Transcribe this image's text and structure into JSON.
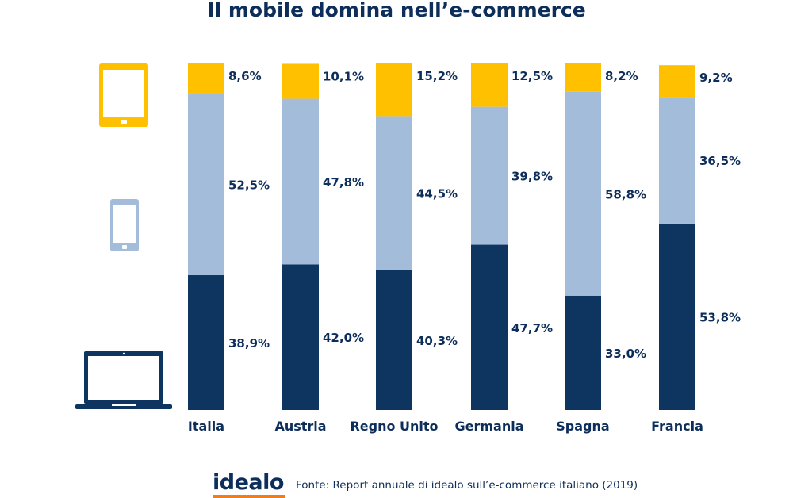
{
  "title": "Il mobile domina nell’e-commerce",
  "footer": {
    "logo": "idealo",
    "source": "Fonte: Report annuale di idealo sull’e-commerce italiano (2019)"
  },
  "icons": [
    "tablet-icon",
    "smartphone-icon",
    "laptop-icon"
  ],
  "colors": {
    "tablet": "#ffc000",
    "smartphone": "#a3bcd9",
    "desktop": "#0d3560",
    "text": "#0d2d5a",
    "logo_bar": "#f07d1a"
  },
  "chart_data": {
    "type": "bar",
    "stacked": true,
    "categories": [
      "Italia",
      "Austria",
      "Regno Unito",
      "Germania",
      "Spagna",
      "Francia"
    ],
    "series": [
      {
        "key": "desktop",
        "values": [
          38.9,
          42.0,
          40.3,
          47.7,
          33.0,
          53.8
        ],
        "labels": [
          "38,9%",
          "42,0%",
          "40,3%",
          "47,7%",
          "33,0%",
          "53,8%"
        ]
      },
      {
        "key": "smartphone",
        "values": [
          52.5,
          47.8,
          44.5,
          39.8,
          58.8,
          36.5
        ],
        "labels": [
          "52,5%",
          "47,8%",
          "44,5%",
          "39,8%",
          "58,8%",
          "36,5%"
        ]
      },
      {
        "key": "tablet",
        "values": [
          8.6,
          10.1,
          15.2,
          12.5,
          8.2,
          9.2
        ],
        "labels": [
          "8,6%",
          "10,1%",
          "15,2%",
          "12,5%",
          "8,2%",
          "9,2%"
        ]
      }
    ],
    "ylim": [
      0,
      100
    ],
    "grid": false,
    "legend": "icons-left"
  }
}
